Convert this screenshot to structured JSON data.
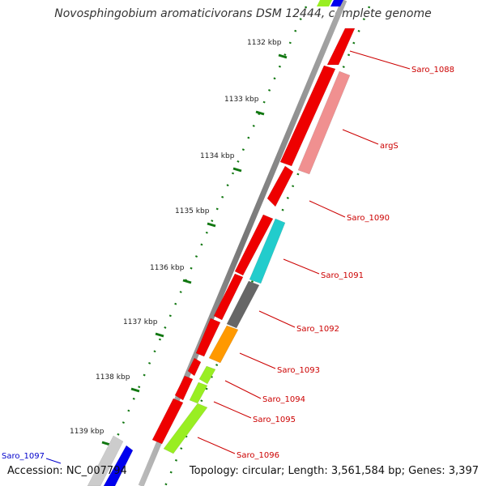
{
  "title": "Novosphingobium aromaticivorans DSM 12444, complete genome",
  "accession": "Accession: NC_007794",
  "summary": "Topology: circular; Length: 3,561,584 bp; Genes: 3,397",
  "ticks": [
    "1132 kbp",
    "1133 kbp",
    "1134 kbp",
    "1135 kbp",
    "1136 kbp",
    "1137 kbp",
    "1138 kbp",
    "1139 kbp"
  ],
  "gene_labels": [
    {
      "name": "Saro_1088",
      "color": "#cc0000"
    },
    {
      "name": "argS",
      "color": "#cc0000"
    },
    {
      "name": "Saro_1090",
      "color": "#cc0000"
    },
    {
      "name": "Saro_1091",
      "color": "#cc0000"
    },
    {
      "name": "Saro_1092",
      "color": "#cc0000"
    },
    {
      "name": "Saro_1093",
      "color": "#cc0000"
    },
    {
      "name": "Saro_1094",
      "color": "#cc0000"
    },
    {
      "name": "Saro_1095",
      "color": "#cc0000"
    },
    {
      "name": "Saro_1096",
      "color": "#cc0000"
    },
    {
      "name": "Saro_1097",
      "color": "#0000cc"
    }
  ],
  "colors": {
    "forward_gene": "#ee0000",
    "argS": "#f09090",
    "cyan": "#22cccc",
    "dark_gray": "#666666",
    "orange": "#ff9900",
    "lime": "#99ee22",
    "blue": "#0000ee",
    "light_gray": "#cccccc",
    "backbone": "#888888",
    "tick_green": "#117711"
  }
}
